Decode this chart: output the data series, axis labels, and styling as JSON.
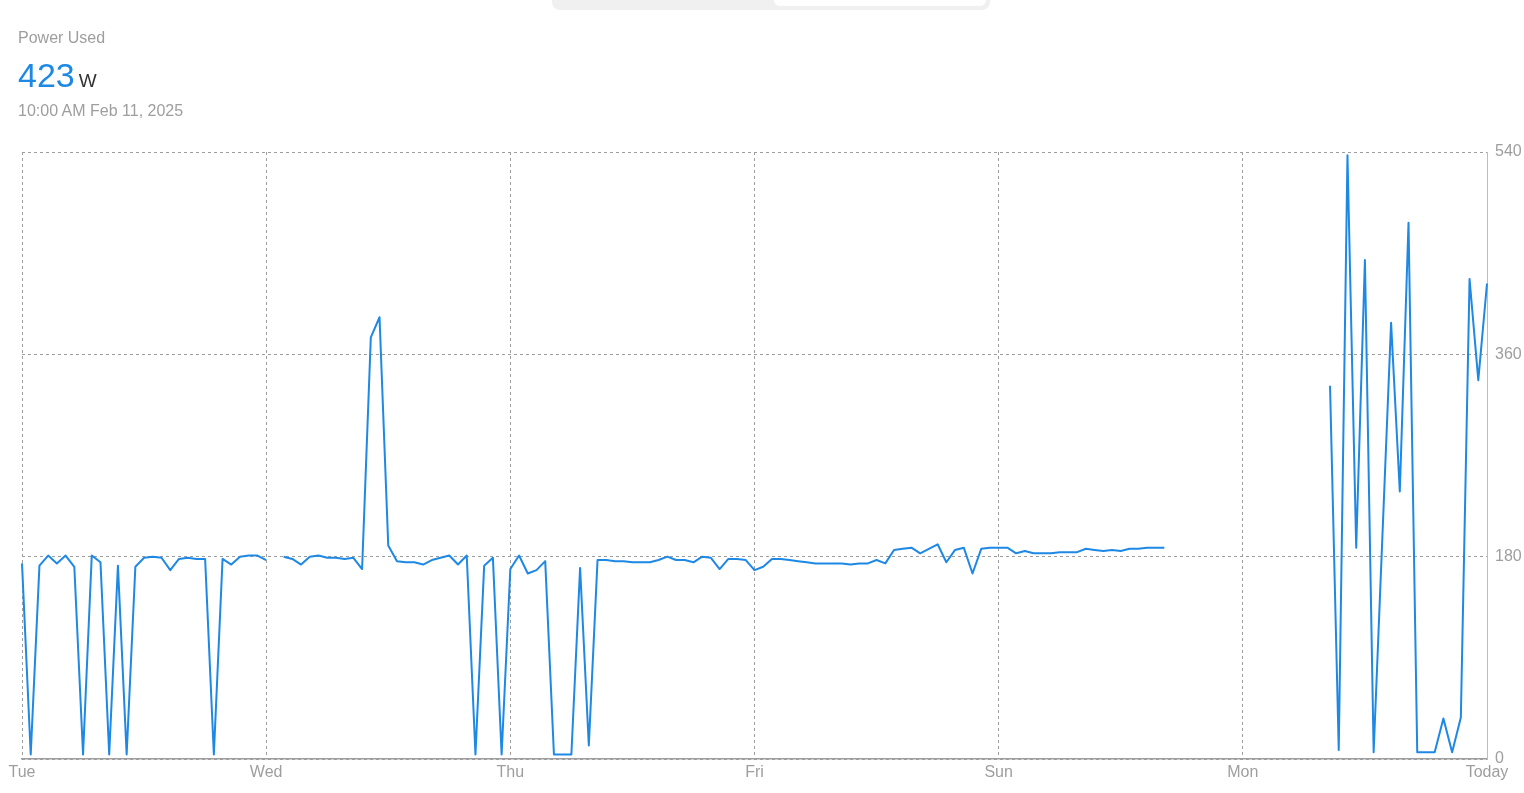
{
  "chart_data": {
    "type": "line",
    "title": "Power Used",
    "subtitle": "10:00 AM  Feb 11, 2025",
    "annotations": [
      "423",
      "W"
    ],
    "categories": [
      "Tue",
      null,
      null,
      null,
      null,
      null,
      null,
      null,
      null,
      null,
      null,
      null,
      null,
      null,
      null,
      null,
      null,
      null,
      null,
      null,
      null,
      null,
      null,
      null,
      null,
      null,
      null,
      null,
      "Wed",
      null,
      null,
      null,
      null,
      null,
      null,
      null,
      null,
      null,
      null,
      null,
      null,
      null,
      null,
      null,
      null,
      null,
      null,
      null,
      null,
      null,
      null,
      null,
      null,
      null,
      null,
      null,
      "Thu",
      null,
      null,
      null,
      null,
      null,
      null,
      null,
      null,
      null,
      null,
      null,
      null,
      null,
      null,
      null,
      null,
      null,
      null,
      null,
      null,
      null,
      null,
      null,
      null,
      null,
      null,
      null,
      "Fri",
      null,
      null,
      null,
      null,
      null,
      null,
      null,
      null,
      null,
      null,
      null,
      null,
      null,
      null,
      null,
      null,
      null,
      null,
      null,
      null,
      null,
      null,
      null,
      null,
      null,
      null,
      null,
      "Sun",
      null,
      null,
      null,
      null,
      null,
      null,
      null,
      null,
      null,
      null,
      null,
      null,
      null,
      null,
      null,
      null,
      null,
      null,
      null,
      null,
      null,
      null,
      null,
      null,
      null,
      null,
      null,
      "Mon",
      null,
      null,
      null,
      null,
      null,
      null,
      null,
      null,
      null,
      null,
      null,
      null,
      null,
      null,
      null,
      null,
      null,
      null,
      null,
      null,
      null,
      null,
      null,
      null,
      null,
      null,
      null,
      "Today"
    ],
    "series": [
      {
        "color": "#1e88e5",
        "values": [
          174,
          4,
          172,
          181,
          174,
          181,
          171,
          4,
          181,
          175,
          4,
          172,
          4,
          171,
          179,
          180,
          179,
          168,
          178,
          179,
          178,
          178,
          4,
          178,
          173,
          180,
          181,
          181,
          177,
          null,
          180,
          178,
          173,
          180,
          181,
          179,
          179,
          178,
          179,
          169,
          375,
          393,
          190,
          176,
          175,
          175,
          173,
          177,
          179,
          181,
          173,
          181,
          4,
          172,
          179,
          4,
          169,
          181,
          165,
          168,
          176,
          4,
          4,
          4,
          170,
          12,
          177,
          177,
          176,
          176,
          175,
          175,
          175,
          177,
          180,
          177,
          177,
          175,
          180,
          179,
          169,
          178,
          178,
          177,
          168,
          171,
          178,
          178,
          177,
          176,
          175,
          174,
          174,
          174,
          174,
          173,
          174,
          174,
          177,
          174,
          186,
          187,
          188,
          183,
          187,
          191,
          175,
          186,
          188,
          165,
          187,
          188,
          188,
          188,
          183,
          185,
          183,
          183,
          183,
          184,
          184,
          184,
          187,
          186,
          185,
          186,
          185,
          187,
          187,
          188,
          188,
          188,
          null,
          null,
          null,
          null,
          null,
          null,
          null,
          null,
          null,
          null,
          null,
          null,
          null,
          null,
          null,
          null,
          null,
          null,
          332,
          8,
          537,
          188,
          444,
          6,
          197,
          388,
          238,
          477,
          6,
          6,
          6,
          36,
          6,
          37,
          427,
          337,
          423
        ]
      }
    ],
    "ylim": [
      0,
      540
    ],
    "yticks": [
      0,
      180,
      360,
      540
    ],
    "grid": true,
    "marker": "none",
    "line_style": "solid"
  }
}
